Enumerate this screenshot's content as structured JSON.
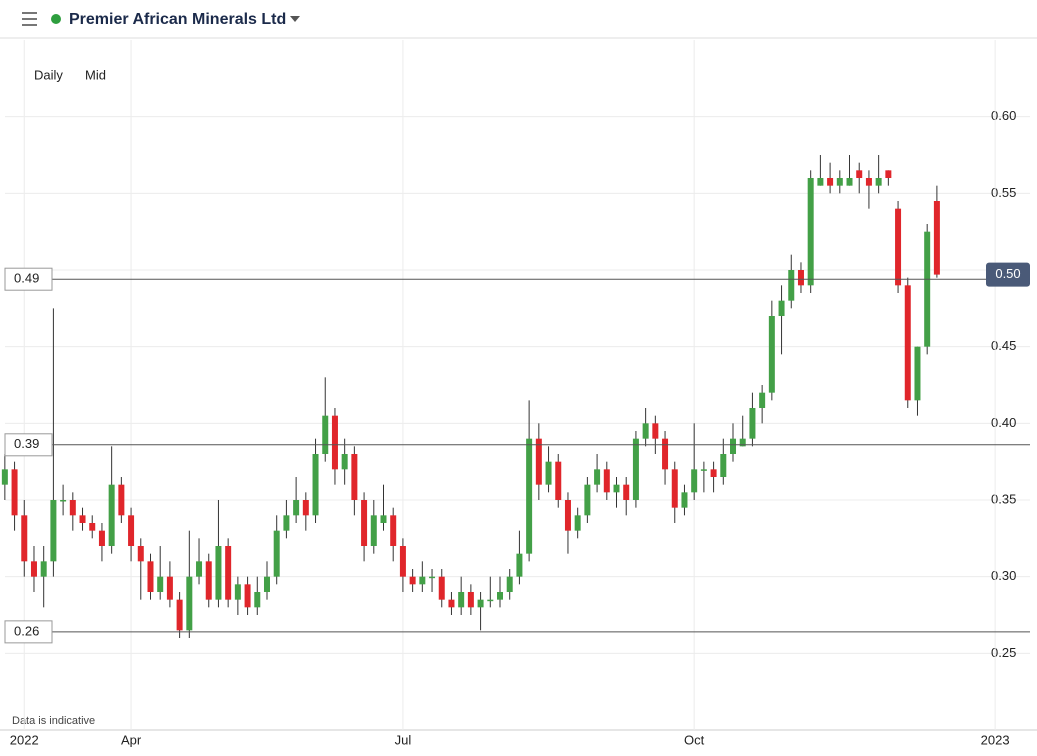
{
  "chart_data": {
    "type": "candlestick",
    "title": "Premier African Minerals Ltd",
    "controls": [
      "Daily",
      "Mid"
    ],
    "footnote": "Data is indicative",
    "up_color": "#43a047",
    "down_color": "#e0262b",
    "grid": true,
    "xlim": [
      -0.5,
      102.5
    ],
    "xticks": [
      {
        "value": 2,
        "label": "2022"
      },
      {
        "value": 13,
        "label": "Apr"
      },
      {
        "value": 41,
        "label": "Jul"
      },
      {
        "value": 71,
        "label": "Oct"
      },
      {
        "value": 102,
        "label": "2023"
      }
    ],
    "ylim": [
      0.2,
      0.65
    ],
    "yticks": [
      0.25,
      {
        "value": 0.3,
        "label": "0.30"
      },
      0.35,
      {
        "value": 0.4,
        "label": "0.40"
      },
      0.45,
      {
        "value": 0.5,
        "label": "0.50"
      },
      0.55,
      {
        "value": 0.6,
        "label": "0.60"
      }
    ],
    "levels": [
      {
        "value": 0.494,
        "label": "0.49"
      },
      {
        "value": 0.386,
        "label": "0.39"
      },
      {
        "value": 0.264,
        "label": "0.26"
      }
    ],
    "last_price": {
      "value": 0.497,
      "label": "0.50"
    },
    "series": {
      "open": [
        0.36,
        0.37,
        0.34,
        0.31,
        0.3,
        0.31,
        0.35,
        0.35,
        0.34,
        0.335,
        0.33,
        0.32,
        0.36,
        0.34,
        0.32,
        0.31,
        0.29,
        0.3,
        0.285,
        0.265,
        0.3,
        0.31,
        0.285,
        0.32,
        0.285,
        0.295,
        0.28,
        0.29,
        0.3,
        0.33,
        0.34,
        0.35,
        0.34,
        0.38,
        0.405,
        0.37,
        0.38,
        0.35,
        0.32,
        0.335,
        0.34,
        0.32,
        0.3,
        0.295,
        0.3,
        0.3,
        0.285,
        0.28,
        0.29,
        0.28,
        0.285,
        0.285,
        0.29,
        0.3,
        0.315,
        0.39,
        0.36,
        0.375,
        0.35,
        0.33,
        0.34,
        0.36,
        0.37,
        0.355,
        0.36,
        0.35,
        0.39,
        0.4,
        0.39,
        0.37,
        0.345,
        0.355,
        0.37,
        0.37,
        0.365,
        0.38,
        0.385,
        0.39,
        0.41,
        0.42,
        0.47,
        0.48,
        0.5,
        0.49,
        0.555,
        0.56,
        0.555,
        0.555,
        0.565,
        0.56,
        0.555,
        0.565,
        0.54,
        0.49,
        0.415,
        0.45,
        0.545
      ],
      "high": [
        0.38,
        0.375,
        0.35,
        0.32,
        0.32,
        0.475,
        0.36,
        0.355,
        0.345,
        0.34,
        0.335,
        0.385,
        0.365,
        0.345,
        0.325,
        0.315,
        0.32,
        0.31,
        0.29,
        0.33,
        0.325,
        0.315,
        0.35,
        0.325,
        0.3,
        0.3,
        0.3,
        0.31,
        0.34,
        0.35,
        0.365,
        0.355,
        0.39,
        0.43,
        0.41,
        0.39,
        0.385,
        0.355,
        0.35,
        0.36,
        0.345,
        0.325,
        0.305,
        0.31,
        0.305,
        0.305,
        0.29,
        0.3,
        0.295,
        0.29,
        0.3,
        0.3,
        0.305,
        0.33,
        0.415,
        0.4,
        0.385,
        0.38,
        0.355,
        0.345,
        0.365,
        0.38,
        0.375,
        0.365,
        0.365,
        0.395,
        0.41,
        0.405,
        0.395,
        0.375,
        0.36,
        0.4,
        0.375,
        0.375,
        0.39,
        0.4,
        0.405,
        0.42,
        0.425,
        0.48,
        0.49,
        0.51,
        0.505,
        0.565,
        0.575,
        0.57,
        0.565,
        0.575,
        0.57,
        0.565,
        0.575,
        0.565,
        0.545,
        0.495,
        0.45,
        0.53,
        0.555
      ],
      "low": [
        0.35,
        0.33,
        0.3,
        0.29,
        0.28,
        0.3,
        0.34,
        0.33,
        0.33,
        0.325,
        0.31,
        0.315,
        0.335,
        0.31,
        0.285,
        0.285,
        0.285,
        0.28,
        0.26,
        0.26,
        0.295,
        0.28,
        0.28,
        0.28,
        0.275,
        0.275,
        0.275,
        0.285,
        0.295,
        0.325,
        0.335,
        0.33,
        0.335,
        0.375,
        0.36,
        0.36,
        0.34,
        0.31,
        0.315,
        0.33,
        0.31,
        0.29,
        0.29,
        0.29,
        0.29,
        0.28,
        0.275,
        0.275,
        0.275,
        0.265,
        0.28,
        0.28,
        0.285,
        0.295,
        0.31,
        0.35,
        0.355,
        0.345,
        0.315,
        0.325,
        0.335,
        0.355,
        0.35,
        0.345,
        0.34,
        0.345,
        0.385,
        0.38,
        0.36,
        0.335,
        0.34,
        0.35,
        0.355,
        0.355,
        0.36,
        0.375,
        0.385,
        0.385,
        0.4,
        0.415,
        0.445,
        0.475,
        0.485,
        0.485,
        0.555,
        0.55,
        0.55,
        0.555,
        0.55,
        0.54,
        0.55,
        0.555,
        0.485,
        0.41,
        0.405,
        0.445,
        0.495
      ],
      "close": [
        0.37,
        0.34,
        0.31,
        0.3,
        0.31,
        0.35,
        0.35,
        0.34,
        0.335,
        0.33,
        0.32,
        0.36,
        0.34,
        0.32,
        0.31,
        0.29,
        0.3,
        0.285,
        0.265,
        0.3,
        0.31,
        0.285,
        0.32,
        0.285,
        0.295,
        0.28,
        0.29,
        0.3,
        0.33,
        0.34,
        0.35,
        0.34,
        0.38,
        0.405,
        0.37,
        0.38,
        0.35,
        0.32,
        0.34,
        0.34,
        0.32,
        0.3,
        0.295,
        0.3,
        0.3,
        0.285,
        0.28,
        0.29,
        0.28,
        0.285,
        0.285,
        0.29,
        0.3,
        0.315,
        0.39,
        0.36,
        0.375,
        0.35,
        0.33,
        0.34,
        0.36,
        0.37,
        0.355,
        0.36,
        0.35,
        0.39,
        0.4,
        0.39,
        0.37,
        0.345,
        0.355,
        0.37,
        0.37,
        0.365,
        0.38,
        0.39,
        0.39,
        0.41,
        0.42,
        0.47,
        0.48,
        0.5,
        0.49,
        0.56,
        0.56,
        0.555,
        0.56,
        0.56,
        0.56,
        0.555,
        0.56,
        0.56,
        0.49,
        0.415,
        0.45,
        0.525,
        0.497
      ]
    }
  }
}
